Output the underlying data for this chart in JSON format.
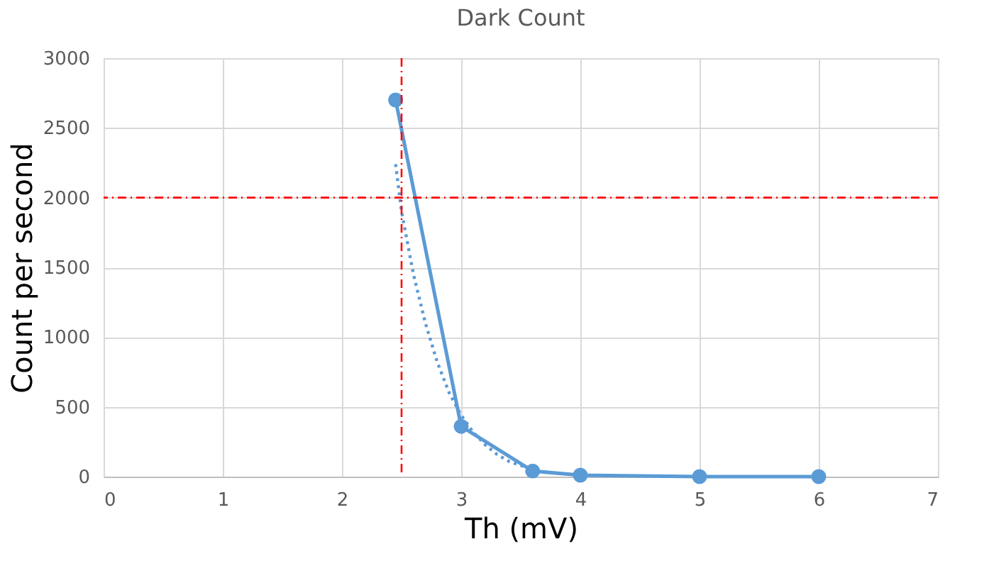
{
  "chart_data": {
    "type": "line",
    "title": "Dark Count",
    "xlabel": "Th (mV)",
    "ylabel": "Count per second",
    "xlim": [
      0,
      7
    ],
    "xticks": [
      0,
      1,
      2,
      3,
      4,
      5,
      6,
      7
    ],
    "ylim": [
      0,
      3000
    ],
    "yticks": [
      0,
      500,
      1000,
      1500,
      2000,
      2500,
      3000
    ],
    "grid": true,
    "series": [
      {
        "color": "#5b9bd5",
        "x": [
          2.45,
          3.0,
          3.6,
          4,
          5,
          6
        ],
        "values": [
          2700,
          360,
          40,
          10,
          0,
          0
        ],
        "marker": "circle",
        "line_style": "solid"
      },
      {
        "type": "line",
        "color": "#5b9bd5",
        "x": [
          2.45,
          2.5,
          2.6,
          2.7,
          2.8,
          2.9,
          3.0,
          3.1,
          3.2,
          3.3,
          3.4,
          3.5,
          3.6
        ],
        "values": [
          2240,
          1900,
          1450,
          1100,
          820,
          600,
          440,
          320,
          230,
          160,
          110,
          80,
          50
        ],
        "marker": "none",
        "line_style": "dotted"
      }
    ],
    "ref_lines": [
      {
        "axis": "y",
        "value": 2000,
        "color": "#ff0000",
        "line_style": "dashed"
      },
      {
        "axis": "x",
        "value": 2.5,
        "color": "#ff0000",
        "line_style": "dashed"
      }
    ]
  }
}
